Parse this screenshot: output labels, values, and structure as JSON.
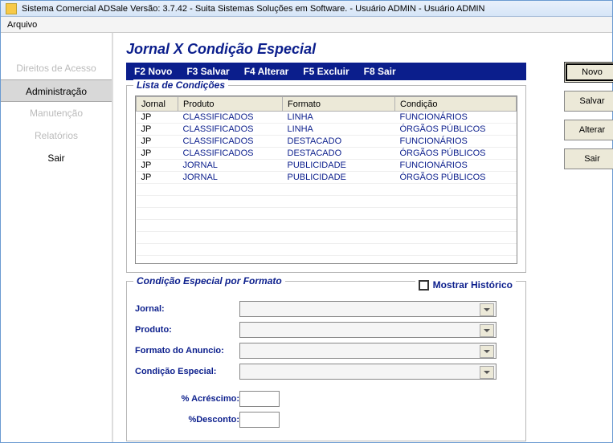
{
  "window": {
    "title": "Sistema Comercial ADSale Versão: 3.7.42 - Suita Sistemas Soluções em Software. - Usuário ADMIN - Usuário ADMIN"
  },
  "menubar": {
    "items": [
      "Arquivo"
    ]
  },
  "sidebar": {
    "items": [
      {
        "label": "Direitos de Acesso",
        "state": "disabled"
      },
      {
        "label": "Administração",
        "state": "active"
      },
      {
        "label": "Manutenção",
        "state": "disabled"
      },
      {
        "label": "Relatórios",
        "state": "disabled"
      },
      {
        "label": "Sair",
        "state": "enabled"
      }
    ]
  },
  "page": {
    "title": "Jornal X Condição Especial"
  },
  "fkeys": {
    "items": [
      "F2 Novo",
      "F3 Salvar",
      "F4 Alterar",
      "F5 Excluir",
      "F8 Sair"
    ]
  },
  "list_group": {
    "legend": "Lista de Condições",
    "columns": [
      "Jornal",
      "Produto",
      "Formato",
      "Condição"
    ],
    "rows": [
      [
        "JP",
        "CLASSIFICADOS",
        "LINHA",
        "FUNCIONÁRIOS"
      ],
      [
        "JP",
        "CLASSIFICADOS",
        "LINHA",
        "ÓRGÃOS PÚBLICOS"
      ],
      [
        "JP",
        "CLASSIFICADOS",
        "DESTACADO",
        "FUNCIONÁRIOS"
      ],
      [
        "JP",
        "CLASSIFICADOS",
        "DESTACADO",
        "ÓRGÃOS PÚBLICOS"
      ],
      [
        "JP",
        "JORNAL",
        "PUBLICIDADE",
        "FUNCIONÁRIOS"
      ],
      [
        "JP",
        "JORNAL",
        "PUBLICIDADE",
        "ÓRGÃOS PÚBLICOS"
      ]
    ],
    "col_widths": [
      "52px",
      "130px",
      "140px",
      "auto"
    ]
  },
  "form_group": {
    "legend": "Condição Especial por Formato",
    "show_history_label": "Mostrar Histórico",
    "show_history_checked": false,
    "fields": {
      "jornal_label": "Jornal:",
      "produto_label": "Produto:",
      "formato_label": "Formato do Anuncio:",
      "condicao_label": "Condição Especial:",
      "acrescimo_label": "% Acréscimo:",
      "desconto_label": "%Desconto:"
    }
  },
  "buttons": {
    "novo": "Novo",
    "salvar": "Salvar",
    "alterar": "Alterar",
    "sair": "Sair"
  },
  "colors": {
    "primary": "#0b1e8c",
    "titlebar_bg_top": "#e8f0fb",
    "titlebar_bg_bot": "#d6e5f7",
    "btn_face": "#ece9d8"
  }
}
